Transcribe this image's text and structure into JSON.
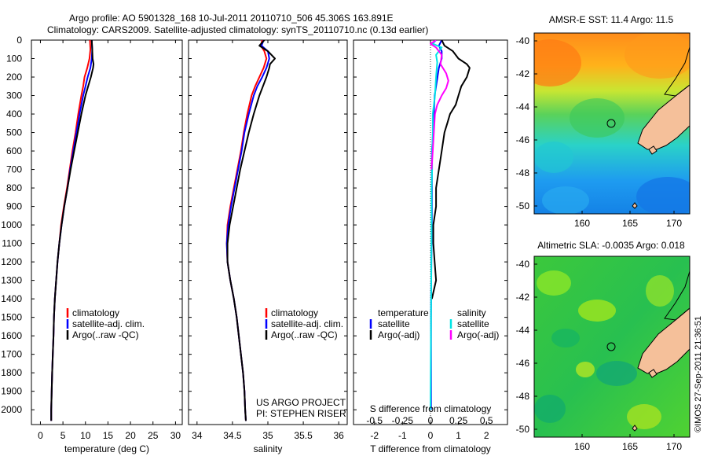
{
  "header": {
    "line1": "Argo profile: AO 5901328_168 10-Jul-2011 20110710_506 45.306S 163.891E",
    "line2": "Climatology: CARS2009. Satellite-adjusted climatology: synTS_20110710.nc (0.13d earlier)"
  },
  "colors": {
    "climatology": "#ff0000",
    "satellite": "#0000ff",
    "argo": "#000000",
    "s_satellite": "#00e5e5",
    "s_argo": "#ff00ff",
    "land": "#f5c09a"
  },
  "chart_data": [
    {
      "type": "line",
      "panel": "temperature",
      "xlabel": "temperature (deg C)",
      "xticks": [
        "0",
        "5",
        "10",
        "15",
        "20",
        "25",
        "30"
      ],
      "xlim": [
        -2,
        31.5
      ],
      "ylim": [
        2080,
        0
      ],
      "yticks": [
        "0",
        "100",
        "200",
        "300",
        "400",
        "500",
        "600",
        "700",
        "800",
        "900",
        "1000",
        "1100",
        "1200",
        "1300",
        "1400",
        "1500",
        "1600",
        "1700",
        "1800",
        "1900",
        "2000"
      ],
      "legend": [
        "climatology",
        "satellite-adj. clim.",
        "Argo(..raw -QC)"
      ],
      "series": [
        {
          "name": "climatology",
          "depth": [
            0,
            50,
            100,
            150,
            200,
            250,
            300,
            400,
            500,
            600,
            700,
            800,
            900,
            1000,
            1100,
            1200,
            1300,
            1400,
            1500,
            1600,
            1700,
            1800,
            1900,
            2000,
            2060
          ],
          "values": [
            11.0,
            11.1,
            10.9,
            10.4,
            9.8,
            9.5,
            9.1,
            8.4,
            7.8,
            7.1,
            6.5,
            5.9,
            5.2,
            4.6,
            4.2,
            3.8,
            3.5,
            3.2,
            3.0,
            2.9,
            2.75,
            2.6,
            2.5,
            2.4,
            2.4
          ]
        },
        {
          "name": "satellite-adj. clim.",
          "depth": [
            0,
            50,
            100,
            150,
            200,
            250,
            300,
            400,
            500,
            600,
            700,
            800,
            900,
            1000,
            1100,
            1200,
            1300,
            1400,
            1500,
            1600,
            1700,
            1800,
            1900,
            2000,
            2060
          ],
          "values": [
            11.4,
            11.5,
            11.4,
            11.1,
            10.5,
            10.0,
            9.5,
            8.7,
            8.0,
            7.3,
            6.6,
            6.0,
            5.3,
            4.7,
            4.2,
            3.8,
            3.5,
            3.2,
            3.0,
            2.9,
            2.75,
            2.6,
            2.5,
            2.4,
            2.4
          ]
        },
        {
          "name": "Argo(..raw -QC)",
          "depth": [
            0,
            50,
            100,
            130,
            150,
            200,
            250,
            300,
            400,
            500,
            600,
            700,
            800,
            900,
            1000,
            1100,
            1200,
            1300,
            1400,
            1500,
            1600,
            1700,
            1800,
            1900,
            2000,
            2060
          ],
          "values": [
            11.4,
            11.5,
            11.6,
            11.8,
            11.7,
            11.2,
            10.6,
            10.0,
            9.1,
            8.3,
            7.5,
            6.7,
            6.0,
            5.3,
            4.7,
            4.2,
            3.8,
            3.5,
            3.2,
            3.0,
            2.9,
            2.75,
            2.6,
            2.5,
            2.4,
            2.4
          ]
        }
      ]
    },
    {
      "type": "line",
      "panel": "salinity",
      "xlabel": "salinity",
      "xticks": [
        "34",
        "34.5",
        "35",
        "35.5",
        "36"
      ],
      "xlim": [
        33.88,
        36.12
      ],
      "ylim": [
        2080,
        0
      ],
      "legend": [
        "climatology",
        "satellite-adj. clim.",
        "Argo(..raw -QC)"
      ],
      "annotation": [
        "US ARGO PROJECT",
        "PI: STEPHEN RISER"
      ],
      "series": [
        {
          "name": "climatology",
          "depth": [
            0,
            30,
            60,
            100,
            150,
            200,
            250,
            300,
            400,
            500,
            600,
            700,
            800,
            900,
            1000,
            1100,
            1200,
            1300,
            1400,
            1500,
            1600,
            1700,
            1800,
            1900,
            2000,
            2060
          ],
          "values": [
            34.92,
            34.9,
            34.95,
            34.98,
            34.94,
            34.88,
            34.82,
            34.77,
            34.71,
            34.66,
            34.62,
            34.57,
            34.52,
            34.47,
            34.43,
            34.42,
            34.43,
            34.47,
            34.52,
            34.56,
            34.59,
            34.62,
            34.65,
            34.67,
            34.68,
            34.69
          ]
        },
        {
          "name": "satellite-adj. clim.",
          "depth": [
            0,
            30,
            60,
            100,
            150,
            200,
            250,
            300,
            400,
            500,
            600,
            700,
            800,
            900,
            1000,
            1100,
            1200,
            1300,
            1400,
            1500,
            1600,
            1700,
            1800,
            1900,
            2000,
            2060
          ],
          "values": [
            34.94,
            34.91,
            35.0,
            35.02,
            34.98,
            34.92,
            34.85,
            34.8,
            34.73,
            34.67,
            34.63,
            34.58,
            34.53,
            34.48,
            34.44,
            34.42,
            34.43,
            34.47,
            34.52,
            34.56,
            34.59,
            34.62,
            34.65,
            34.67,
            34.68,
            34.69
          ]
        },
        {
          "name": "Argo(..raw -QC)",
          "depth": [
            0,
            30,
            60,
            100,
            130,
            150,
            200,
            250,
            300,
            400,
            500,
            600,
            700,
            800,
            900,
            1000,
            1100,
            1200,
            1300,
            1400,
            1500,
            1600,
            1700,
            1800,
            1900,
            2000,
            2060
          ],
          "values": [
            34.95,
            34.88,
            35.0,
            35.1,
            35.03,
            35.02,
            34.98,
            34.93,
            34.88,
            34.8,
            34.73,
            34.67,
            34.61,
            34.56,
            34.51,
            34.46,
            34.43,
            34.43,
            34.47,
            34.52,
            34.56,
            34.59,
            34.62,
            34.65,
            34.67,
            34.68,
            34.69
          ]
        }
      ]
    },
    {
      "type": "line",
      "panel": "difference",
      "xlabel": "T difference from climatology",
      "xticks": [
        "-2",
        "-1",
        "0",
        "1",
        "2"
      ],
      "xlim": [
        -2.75,
        2.75
      ],
      "s_xlabel": "S difference from climatology",
      "s_xticks": [
        "-0.5",
        "-0.25",
        "0",
        "0.25",
        "0.5"
      ],
      "ylim": [
        2080,
        0
      ],
      "legend_temperature": {
        "title": "temperature",
        "items": [
          "satellite",
          "Argo(-adj)"
        ]
      },
      "legend_salinity": {
        "title": "salinity",
        "items": [
          "satellite",
          "Argo(-adj)"
        ]
      },
      "series": [
        {
          "name": "temperature satellite",
          "depth": [
            0,
            30,
            60,
            100,
            150,
            200,
            250,
            300,
            400,
            500,
            600,
            800,
            1000,
            1200,
            1500,
            2000
          ],
          "values": [
            0.4,
            0.3,
            0.4,
            0.4,
            0.3,
            0.25,
            0.2,
            0.15,
            0.12,
            0.1,
            0.05,
            0.05,
            0.05,
            0.03,
            0.02,
            0.02
          ]
        },
        {
          "name": "temperature Argo(-adj)",
          "depth": [
            0,
            30,
            60,
            100,
            130,
            150,
            200,
            250,
            300,
            350,
            400,
            450,
            500,
            600,
            700,
            800,
            900,
            1000,
            1100,
            1200,
            1300,
            1400
          ],
          "values": [
            0.4,
            0.5,
            0.8,
            1.0,
            1.3,
            1.4,
            1.3,
            1.1,
            1.0,
            0.9,
            0.7,
            0.6,
            0.5,
            0.4,
            0.3,
            0.2,
            0.2,
            0.1,
            0.1,
            0.15,
            0.2,
            0.05
          ]
        },
        {
          "name": "salinity satellite",
          "depth": [
            0,
            20,
            40,
            80,
            120,
            200,
            300,
            400,
            500,
            600,
            700,
            800,
            900,
            1000,
            1500,
            2000
          ],
          "values": [
            0.05,
            0.02,
            0.1,
            0.05,
            0.06,
            0.05,
            0.04,
            0.02,
            0.02,
            0.015,
            0.015,
            0.01,
            0.01,
            0.01,
            0.005,
            0.0
          ]
        },
        {
          "name": "salinity Argo(-adj)",
          "depth": [
            0,
            20,
            40,
            80,
            130,
            180,
            220,
            260,
            300,
            350,
            400,
            500,
            600,
            700
          ],
          "values": [
            0.05,
            0.0,
            0.05,
            0.1,
            0.09,
            0.14,
            0.16,
            0.14,
            0.1,
            0.06,
            0.04,
            0.03,
            0.02,
            0.01
          ]
        }
      ]
    }
  ],
  "maps": {
    "sst": {
      "title": "AMSR-E SST: 11.4 Argo: 11.5",
      "lat_ticks": [
        "-40",
        "-42",
        "-44",
        "-46",
        "-48",
        "-50"
      ],
      "lon_ticks": [
        "160",
        "165",
        "170"
      ],
      "argo_marker": {
        "lon": 163.891,
        "lat": -45.306
      }
    },
    "sla": {
      "title": "Altimetric SLA: -0.0035 Argo: 0.018",
      "lat_ticks": [
        "-40",
        "-42",
        "-44",
        "-46",
        "-48",
        "-50"
      ],
      "lon_ticks": [
        "160",
        "165",
        "170"
      ],
      "argo_marker": {
        "lon": 163.891,
        "lat": -45.306
      }
    }
  },
  "footer_stamp": "©IMOS 27-Sep-2011 21:36:51"
}
